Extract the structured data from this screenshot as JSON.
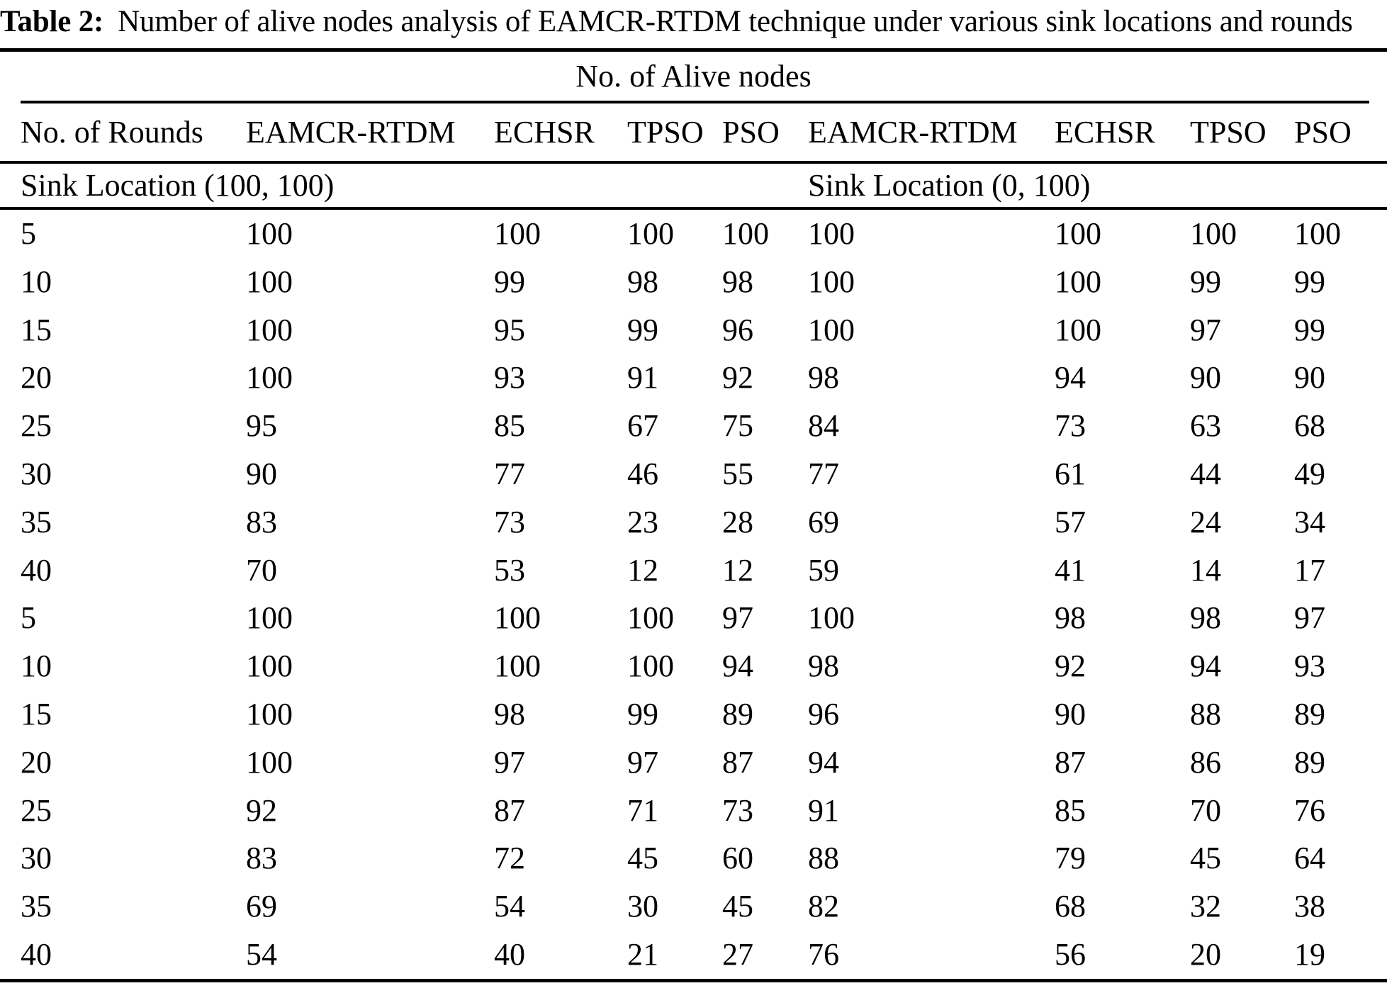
{
  "caption": {
    "label": "Table 2:",
    "text": "Number of alive nodes analysis of EAMCR-RTDM technique under various sink locations and rounds"
  },
  "table": {
    "super_header": "No. of Alive nodes",
    "columns": [
      "No. of Rounds",
      "EAMCR-RTDM",
      "ECHSR",
      "TPSO",
      "PSO",
      "EAMCR-RTDM",
      "ECHSR",
      "TPSO",
      "PSO"
    ],
    "sections": {
      "left": "Sink Location (100, 100)",
      "right": "Sink Location (0, 100)"
    },
    "rows": [
      [
        "5",
        "100",
        "100",
        "100",
        "100",
        "100",
        "100",
        "100",
        "100"
      ],
      [
        "10",
        "100",
        "99",
        "98",
        "98",
        "100",
        "100",
        "99",
        "99"
      ],
      [
        "15",
        "100",
        "95",
        "99",
        "96",
        "100",
        "100",
        "97",
        "99"
      ],
      [
        "20",
        "100",
        "93",
        "91",
        "92",
        "98",
        "94",
        "90",
        "90"
      ],
      [
        "25",
        "95",
        "85",
        "67",
        "75",
        "84",
        "73",
        "63",
        "68"
      ],
      [
        "30",
        "90",
        "77",
        "46",
        "55",
        "77",
        "61",
        "44",
        "49"
      ],
      [
        "35",
        "83",
        "73",
        "23",
        "28",
        "69",
        "57",
        "24",
        "34"
      ],
      [
        "40",
        "70",
        "53",
        "12",
        "12",
        "59",
        "41",
        "14",
        "17"
      ],
      [
        "5",
        "100",
        "100",
        "100",
        "97",
        "100",
        "98",
        "98",
        "97"
      ],
      [
        "10",
        "100",
        "100",
        "100",
        "94",
        "98",
        "92",
        "94",
        "93"
      ],
      [
        "15",
        "100",
        "98",
        "99",
        "89",
        "96",
        "90",
        "88",
        "89"
      ],
      [
        "20",
        "100",
        "97",
        "97",
        "87",
        "94",
        "87",
        "86",
        "89"
      ],
      [
        "25",
        "92",
        "87",
        "71",
        "73",
        "91",
        "85",
        "70",
        "76"
      ],
      [
        "30",
        "83",
        "72",
        "45",
        "60",
        "88",
        "79",
        "45",
        "64"
      ],
      [
        "35",
        "69",
        "54",
        "30",
        "45",
        "82",
        "68",
        "32",
        "38"
      ],
      [
        "40",
        "54",
        "40",
        "21",
        "27",
        "76",
        "56",
        "20",
        "19"
      ]
    ]
  },
  "colors": {
    "text": "#000000",
    "background": "#ffffff",
    "rule": "#000000"
  }
}
